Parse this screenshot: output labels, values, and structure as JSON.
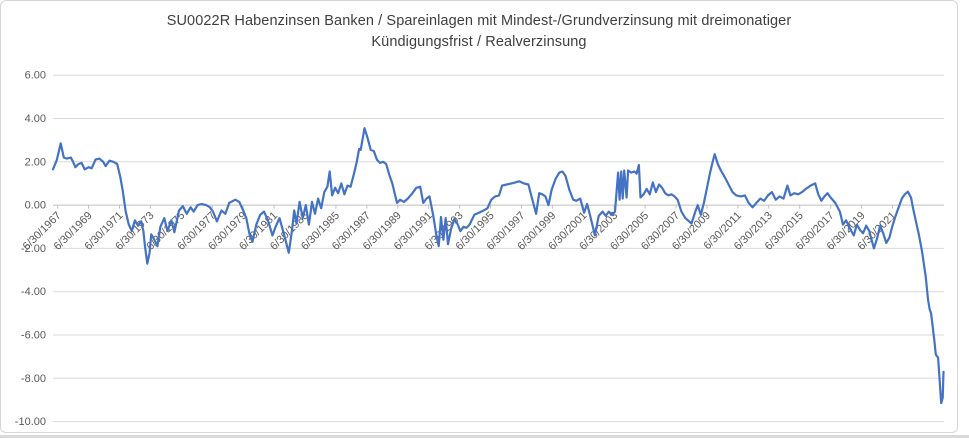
{
  "title": {
    "line1": "SU0022R Habenzinsen Banken / Spareinlagen mit Mindest-/Grundverzinsung mit dreimonatiger",
    "line2": "Kündigungsfrist / Realverzinsung"
  },
  "y_axis": {
    "tick_labels": [
      "6.00",
      "4.00",
      "2.00",
      "0.00",
      "-2.00",
      "-4.00",
      "-6.00",
      "-8.00",
      "-10.00"
    ],
    "max": 6,
    "min": -10,
    "step": -2
  },
  "x_axis": {
    "tick_labels": [
      "6/30/1967",
      "6/30/1969",
      "6/30/1971",
      "6/30/1973",
      "6/30/1975",
      "6/30/1977",
      "6/30/1979",
      "6/30/1981",
      "6/30/1983",
      "6/30/1985",
      "6/30/1987",
      "6/30/1989",
      "6/30/1991",
      "6/30/1993",
      "6/30/1995",
      "6/30/1997",
      "6/30/1999",
      "6/30/2001",
      "6/30/2003",
      "6/30/2005",
      "6/30/2007",
      "6/30/2009",
      "6/30/2011",
      "6/30/2013",
      "6/30/2015",
      "6/30/2017",
      "6/30/2019",
      "6/30/2021"
    ],
    "first_tick_year": 1967,
    "interval_years": 2
  },
  "colors": {
    "line": "#4472C4",
    "gridline": "#D9D9D9",
    "axis_line": "#BFBFBF",
    "tick_text": "#595959",
    "title_text": "#3F3F3F",
    "frame_border": "#D6D6D6"
  },
  "chart_data": {
    "type": "line",
    "title": "SU0022R Habenzinsen Banken / Spareinlagen mit Mindest-/Grundverzinsung mit dreimonatiger Kündigungsfrist / Realverzinsung",
    "xlabel": "",
    "ylabel": "",
    "x_unit": "decimal_year",
    "ylim": [
      -10,
      6
    ],
    "xlim": [
      1967.2,
      2024.8
    ],
    "grid": true,
    "legend": false,
    "points": [
      [
        1967.2,
        1.65
      ],
      [
        1967.45,
        2.1
      ],
      [
        1967.7,
        2.85
      ],
      [
        1967.9,
        2.2
      ],
      [
        1968.1,
        2.15
      ],
      [
        1968.35,
        2.2
      ],
      [
        1968.5,
        2.0
      ],
      [
        1968.65,
        1.75
      ],
      [
        1968.85,
        1.9
      ],
      [
        1969.05,
        1.95
      ],
      [
        1969.25,
        1.65
      ],
      [
        1969.5,
        1.75
      ],
      [
        1969.7,
        1.7
      ],
      [
        1969.95,
        2.1
      ],
      [
        1970.2,
        2.15
      ],
      [
        1970.45,
        2.0
      ],
      [
        1970.6,
        1.8
      ],
      [
        1970.85,
        2.05
      ],
      [
        1971.1,
        2.0
      ],
      [
        1971.35,
        1.9
      ],
      [
        1971.55,
        1.3
      ],
      [
        1971.7,
        0.7
      ],
      [
        1971.9,
        -0.3
      ],
      [
        1972.1,
        -0.9
      ],
      [
        1972.3,
        -1.2
      ],
      [
        1972.5,
        -0.7
      ],
      [
        1972.7,
        -0.95
      ],
      [
        1972.9,
        -0.75
      ],
      [
        1973.05,
        -1.2
      ],
      [
        1973.15,
        -1.9
      ],
      [
        1973.3,
        -2.7
      ],
      [
        1973.45,
        -2.2
      ],
      [
        1973.55,
        -1.35
      ],
      [
        1973.75,
        -1.6
      ],
      [
        1973.95,
        -1.9
      ],
      [
        1974.15,
        -1.0
      ],
      [
        1974.4,
        -0.6
      ],
      [
        1974.6,
        -1.2
      ],
      [
        1974.85,
        -0.7
      ],
      [
        1975.05,
        -1.25
      ],
      [
        1975.35,
        -0.25
      ],
      [
        1975.6,
        -0.05
      ],
      [
        1975.85,
        -0.4
      ],
      [
        1976.1,
        -0.1
      ],
      [
        1976.3,
        -0.3
      ],
      [
        1976.55,
        0.0
      ],
      [
        1976.8,
        0.05
      ],
      [
        1977.1,
        0.0
      ],
      [
        1977.35,
        -0.1
      ],
      [
        1977.55,
        -0.3
      ],
      [
        1977.8,
        -0.75
      ],
      [
        1978.1,
        -0.25
      ],
      [
        1978.35,
        -0.4
      ],
      [
        1978.6,
        0.1
      ],
      [
        1979.0,
        0.25
      ],
      [
        1979.25,
        0.15
      ],
      [
        1979.5,
        -0.25
      ],
      [
        1979.7,
        -0.6
      ],
      [
        1979.9,
        -1.3
      ],
      [
        1980.1,
        -1.7
      ],
      [
        1980.35,
        -0.9
      ],
      [
        1980.6,
        -0.45
      ],
      [
        1980.85,
        -0.3
      ],
      [
        1981.1,
        -0.7
      ],
      [
        1981.4,
        -1.4
      ],
      [
        1981.6,
        -1.0
      ],
      [
        1981.85,
        -0.6
      ],
      [
        1982.1,
        -1.25
      ],
      [
        1982.45,
        -2.2
      ],
      [
        1982.65,
        -1.2
      ],
      [
        1982.8,
        -0.25
      ],
      [
        1982.95,
        -0.85
      ],
      [
        1983.15,
        0.15
      ],
      [
        1983.35,
        -0.6
      ],
      [
        1983.55,
        0.0
      ],
      [
        1983.75,
        -0.9
      ],
      [
        1983.95,
        0.15
      ],
      [
        1984.15,
        -0.4
      ],
      [
        1984.35,
        0.3
      ],
      [
        1984.55,
        -0.15
      ],
      [
        1984.75,
        0.6
      ],
      [
        1984.95,
        0.85
      ],
      [
        1985.1,
        1.55
      ],
      [
        1985.25,
        0.45
      ],
      [
        1985.45,
        0.8
      ],
      [
        1985.65,
        0.55
      ],
      [
        1985.85,
        1.0
      ],
      [
        1986.05,
        0.5
      ],
      [
        1986.25,
        0.9
      ],
      [
        1986.45,
        0.85
      ],
      [
        1986.65,
        1.4
      ],
      [
        1986.85,
        2.0
      ],
      [
        1987.0,
        2.6
      ],
      [
        1987.1,
        2.55
      ],
      [
        1987.35,
        3.55
      ],
      [
        1987.55,
        3.1
      ],
      [
        1987.75,
        2.55
      ],
      [
        1987.95,
        2.5
      ],
      [
        1988.15,
        2.1
      ],
      [
        1988.35,
        1.95
      ],
      [
        1988.55,
        2.0
      ],
      [
        1988.75,
        1.9
      ],
      [
        1988.95,
        1.4
      ],
      [
        1989.15,
        1.0
      ],
      [
        1989.45,
        0.1
      ],
      [
        1989.65,
        0.25
      ],
      [
        1989.9,
        0.15
      ],
      [
        1990.15,
        0.3
      ],
      [
        1990.45,
        0.55
      ],
      [
        1990.7,
        0.8
      ],
      [
        1990.95,
        0.85
      ],
      [
        1991.15,
        0.1
      ],
      [
        1991.35,
        0.3
      ],
      [
        1991.55,
        0.4
      ],
      [
        1991.8,
        -0.5
      ],
      [
        1992.0,
        -1.4
      ],
      [
        1992.15,
        -1.9
      ],
      [
        1992.3,
        -0.55
      ],
      [
        1992.45,
        -1.6
      ],
      [
        1992.6,
        -0.6
      ],
      [
        1992.75,
        -1.8
      ],
      [
        1992.95,
        -1.1
      ],
      [
        1993.15,
        -0.65
      ],
      [
        1993.35,
        -0.85
      ],
      [
        1993.55,
        -1.2
      ],
      [
        1993.75,
        -1.0
      ],
      [
        1993.95,
        -1.05
      ],
      [
        1994.15,
        -0.9
      ],
      [
        1994.45,
        -0.45
      ],
      [
        1994.75,
        -0.35
      ],
      [
        1995.05,
        -0.25
      ],
      [
        1995.3,
        -0.15
      ],
      [
        1995.55,
        0.25
      ],
      [
        1995.8,
        0.4
      ],
      [
        1996.05,
        0.45
      ],
      [
        1996.25,
        0.9
      ],
      [
        1996.55,
        0.95
      ],
      [
        1996.85,
        1.0
      ],
      [
        1997.1,
        1.05
      ],
      [
        1997.35,
        1.1
      ],
      [
        1997.65,
        1.0
      ],
      [
        1997.95,
        0.95
      ],
      [
        1998.15,
        0.4
      ],
      [
        1998.45,
        -0.4
      ],
      [
        1998.65,
        0.55
      ],
      [
        1998.85,
        0.5
      ],
      [
        1999.05,
        0.4
      ],
      [
        1999.25,
        0.0
      ],
      [
        1999.45,
        0.7
      ],
      [
        1999.7,
        1.2
      ],
      [
        1999.95,
        1.5
      ],
      [
        2000.15,
        1.55
      ],
      [
        2000.35,
        1.35
      ],
      [
        2000.6,
        0.7
      ],
      [
        2000.85,
        0.25
      ],
      [
        2001.05,
        0.2
      ],
      [
        2001.3,
        0.3
      ],
      [
        2001.55,
        -0.35
      ],
      [
        2001.75,
        0.05
      ],
      [
        2001.95,
        -0.5
      ],
      [
        2002.25,
        -1.4
      ],
      [
        2002.5,
        -0.5
      ],
      [
        2002.75,
        -0.3
      ],
      [
        2002.95,
        -0.5
      ],
      [
        2003.15,
        -0.3
      ],
      [
        2003.35,
        -0.45
      ],
      [
        2003.55,
        -0.3
      ],
      [
        2003.75,
        1.5
      ],
      [
        2003.85,
        0.25
      ],
      [
        2003.95,
        1.55
      ],
      [
        2004.05,
        0.3
      ],
      [
        2004.15,
        1.6
      ],
      [
        2004.3,
        0.35
      ],
      [
        2004.4,
        1.6
      ],
      [
        2004.6,
        1.5
      ],
      [
        2004.8,
        1.55
      ],
      [
        2004.95,
        1.45
      ],
      [
        2005.1,
        1.85
      ],
      [
        2005.2,
        0.35
      ],
      [
        2005.4,
        0.5
      ],
      [
        2005.6,
        0.75
      ],
      [
        2005.8,
        0.5
      ],
      [
        2006.0,
        1.05
      ],
      [
        2006.2,
        0.6
      ],
      [
        2006.4,
        0.95
      ],
      [
        2006.6,
        0.8
      ],
      [
        2006.8,
        0.55
      ],
      [
        2007.0,
        0.45
      ],
      [
        2007.2,
        0.5
      ],
      [
        2007.4,
        0.4
      ],
      [
        2007.6,
        0.25
      ],
      [
        2007.85,
        -0.3
      ],
      [
        2008.1,
        -0.6
      ],
      [
        2008.5,
        -0.85
      ],
      [
        2008.7,
        -0.4
      ],
      [
        2008.9,
        0.0
      ],
      [
        2009.1,
        -0.45
      ],
      [
        2009.3,
        0.1
      ],
      [
        2009.5,
        0.8
      ],
      [
        2009.7,
        1.5
      ],
      [
        2009.85,
        1.95
      ],
      [
        2010.0,
        2.35
      ],
      [
        2010.2,
        1.9
      ],
      [
        2010.4,
        1.6
      ],
      [
        2010.65,
        1.3
      ],
      [
        2010.9,
        0.95
      ],
      [
        2011.15,
        0.6
      ],
      [
        2011.4,
        0.45
      ],
      [
        2011.7,
        0.4
      ],
      [
        2011.95,
        0.45
      ],
      [
        2012.2,
        0.1
      ],
      [
        2012.45,
        -0.1
      ],
      [
        2012.7,
        0.1
      ],
      [
        2012.95,
        0.3
      ],
      [
        2013.2,
        0.2
      ],
      [
        2013.45,
        0.45
      ],
      [
        2013.7,
        0.6
      ],
      [
        2013.95,
        0.25
      ],
      [
        2014.2,
        0.4
      ],
      [
        2014.45,
        0.3
      ],
      [
        2014.7,
        0.9
      ],
      [
        2014.9,
        0.45
      ],
      [
        2015.15,
        0.55
      ],
      [
        2015.4,
        0.5
      ],
      [
        2015.65,
        0.6
      ],
      [
        2015.9,
        0.75
      ],
      [
        2016.2,
        0.9
      ],
      [
        2016.5,
        1.0
      ],
      [
        2016.7,
        0.5
      ],
      [
        2016.9,
        0.2
      ],
      [
        2017.1,
        0.4
      ],
      [
        2017.3,
        0.55
      ],
      [
        2017.5,
        0.35
      ],
      [
        2017.8,
        0.1
      ],
      [
        2018.1,
        -0.3
      ],
      [
        2018.3,
        -0.9
      ],
      [
        2018.5,
        -0.7
      ],
      [
        2018.8,
        -1.15
      ],
      [
        2019.0,
        -1.4
      ],
      [
        2019.2,
        -0.9
      ],
      [
        2019.4,
        -1.15
      ],
      [
        2019.6,
        -1.3
      ],
      [
        2019.8,
        -0.95
      ],
      [
        2020.0,
        -1.2
      ],
      [
        2020.3,
        -2.0
      ],
      [
        2020.5,
        -1.55
      ],
      [
        2020.7,
        -0.95
      ],
      [
        2020.9,
        -1.3
      ],
      [
        2021.1,
        -1.75
      ],
      [
        2021.3,
        -1.5
      ],
      [
        2021.5,
        -0.95
      ],
      [
        2021.7,
        -0.5
      ],
      [
        2021.9,
        -0.1
      ],
      [
        2022.1,
        0.3
      ],
      [
        2022.3,
        0.5
      ],
      [
        2022.5,
        0.62
      ],
      [
        2022.7,
        0.35
      ],
      [
        2022.85,
        -0.2
      ],
      [
        2023.0,
        -0.7
      ],
      [
        2023.2,
        -1.35
      ],
      [
        2023.4,
        -2.1
      ],
      [
        2023.65,
        -3.3
      ],
      [
        2023.8,
        -4.35
      ],
      [
        2023.9,
        -4.8
      ],
      [
        2024.0,
        -5.0
      ],
      [
        2024.2,
        -6.2
      ],
      [
        2024.3,
        -6.9
      ],
      [
        2024.45,
        -7.05
      ],
      [
        2024.6,
        -8.6
      ],
      [
        2024.65,
        -9.15
      ],
      [
        2024.75,
        -8.9
      ],
      [
        2024.8,
        -7.7
      ]
    ]
  }
}
